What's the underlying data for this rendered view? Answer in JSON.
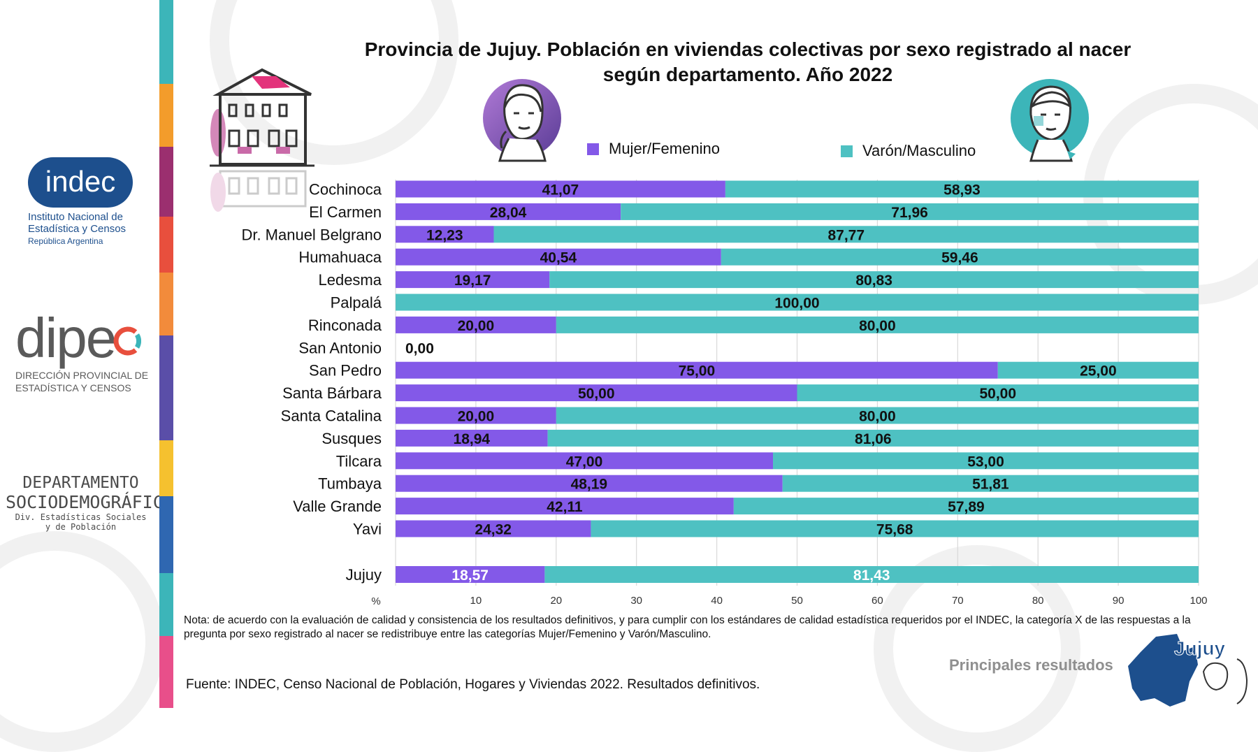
{
  "colors": {
    "mujer": "#8359e8",
    "varon": "#4ec1c2",
    "grid": "#d9d9d9",
    "brand_blue": "#1d4f8d"
  },
  "icons": [
    "house-icon",
    "woman-face-icon",
    "man-face-icon",
    "jujuy-map-icon"
  ],
  "logos": {
    "indec_word": "indec",
    "indec_line1": "Instituto Nacional de",
    "indec_line2": "Estadística y Censos",
    "indec_line3": "República Argentina",
    "dipec_word": "dipe",
    "dipec_line1": "DIRECCIÓN PROVINCIAL DE",
    "dipec_line2": "ESTADÍSTICA Y CENSOS",
    "depto_line1": "DEPARTAMENTO",
    "depto_line2": "SOCIODEMOGRÁFICO",
    "depto_line3": "Div. Estadísticas Sociales",
    "depto_line4": "y de Población",
    "jujuy_word": "Jujuy"
  },
  "footer": {
    "note": "Nota: de acuerdo con la evaluación de calidad y consistencia de los resultados definitivos, y para cumplir con los estándares de calidad estadística requeridos por el INDEC, la categoría X de las respuestas a la pregunta por sexo registrado al nacer se redistribuye entre las categorías Mujer/Femenino y Varón/Masculino.",
    "source": "Fuente: INDEC, Censo Nacional de Población, Hogares y Viviendas 2022. Resultados definitivos.",
    "tagline": "Principales resultados"
  },
  "chart_data": {
    "type": "bar",
    "orientation": "horizontal",
    "stacked": true,
    "title_line1": "Provincia de Jujuy. Población en viviendas colectivas por sexo registrado al nacer",
    "title_line2": "según departamento. Año 2022",
    "xlabel": "%",
    "xlim": [
      0,
      100
    ],
    "xticks": [
      10,
      20,
      30,
      40,
      50,
      60,
      70,
      80,
      90,
      100
    ],
    "grid": "vertical",
    "legend_position": "top",
    "categories": [
      "Cochinoca",
      "El Carmen",
      "Dr. Manuel Belgrano",
      "Humahuaca",
      "Ledesma",
      "Palpalá",
      "Rinconada",
      "San Antonio",
      "San Pedro",
      "Santa Bárbara",
      "Santa Catalina",
      "Susques",
      "Tilcara",
      "Tumbaya",
      "Valle Grande",
      "Yavi",
      "Jujuy"
    ],
    "series": [
      {
        "name": "Mujer/Femenino",
        "color": "#8359e8",
        "values": [
          41.07,
          28.04,
          12.23,
          40.54,
          19.17,
          0,
          20.0,
          0,
          75.0,
          50.0,
          20.0,
          18.94,
          47.0,
          48.19,
          42.11,
          24.32,
          18.57
        ],
        "labels": [
          "41,07",
          "28,04",
          "12,23",
          "40,54",
          "19,17",
          "",
          "20,00",
          "0,00",
          "75,00",
          "50,00",
          "20,00",
          "18,94",
          "47,00",
          "48,19",
          "42,11",
          "24,32",
          "18,57"
        ]
      },
      {
        "name": "Varón/Masculino",
        "color": "#4ec1c2",
        "values": [
          58.93,
          71.96,
          87.77,
          59.46,
          80.83,
          100.0,
          80.0,
          0,
          25.0,
          50.0,
          80.0,
          81.06,
          53.0,
          51.81,
          57.89,
          75.68,
          81.43
        ],
        "labels": [
          "58,93",
          "71,96",
          "87,77",
          "59,46",
          "80,83",
          "100,00",
          "80,00",
          "",
          "25,00",
          "50,00",
          "80,00",
          "81,06",
          "53,00",
          "51,81",
          "57,89",
          "75,68",
          "81,43"
        ]
      }
    ]
  }
}
